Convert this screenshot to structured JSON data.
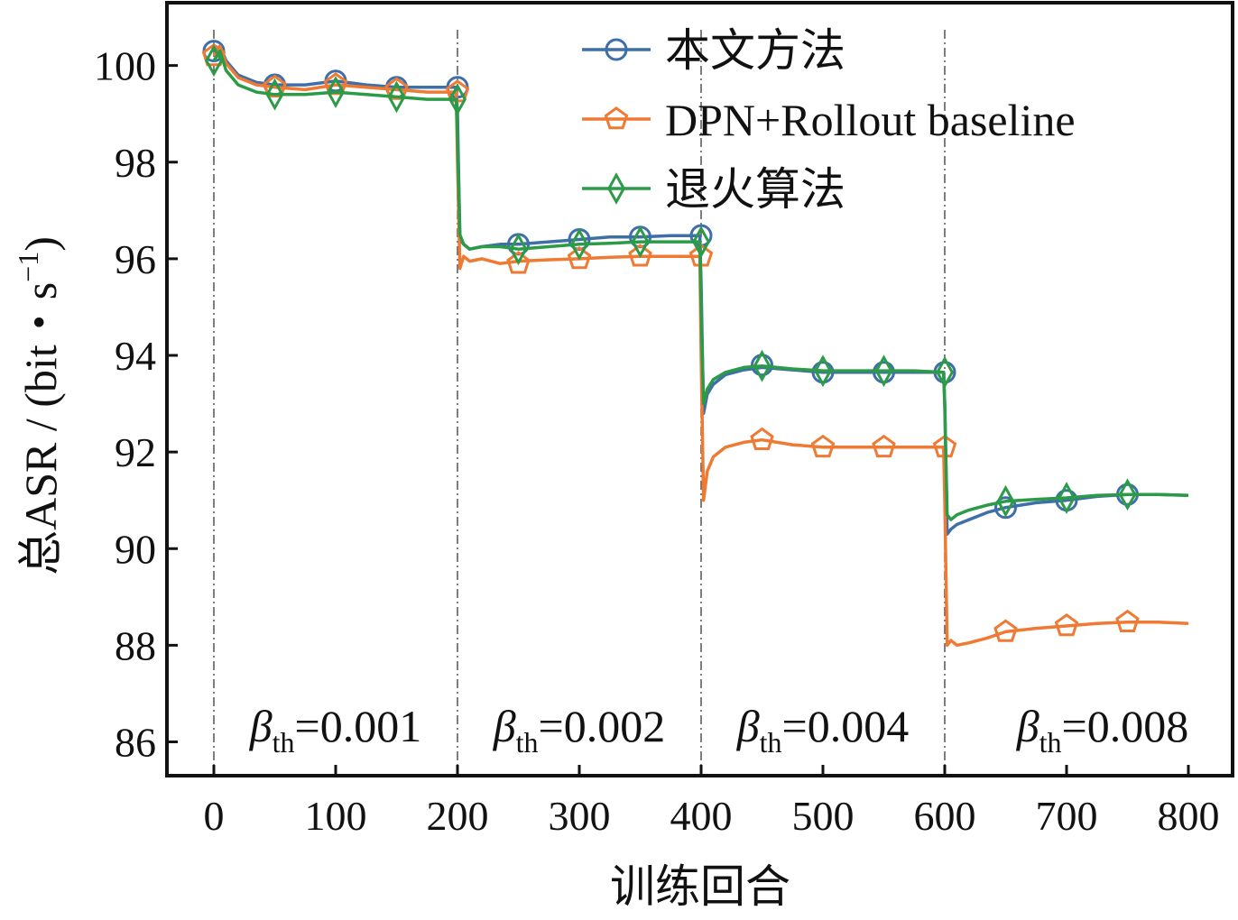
{
  "chart_data": {
    "type": "line",
    "title": "",
    "xlabel": "训练回合",
    "ylabel": "总ASR / (bit・s⁻¹)",
    "ylabel_parts": {
      "main": "总ASR / (bit",
      "dot": "・",
      "s": "s",
      "exp": "−1",
      "close": ")"
    },
    "xlim": [
      0,
      800
    ],
    "ylim": [
      85.3,
      101.3
    ],
    "xticks": [
      0,
      100,
      200,
      300,
      400,
      500,
      600,
      700,
      800
    ],
    "xtick_labels": [
      "0",
      "100",
      "200",
      "300",
      "400",
      "500",
      "600",
      "700",
      "800"
    ],
    "yticks": [
      86,
      88,
      90,
      92,
      94,
      96,
      98,
      100
    ],
    "ytick_labels": [
      "86",
      "88",
      "90",
      "92",
      "94",
      "96",
      "98",
      "100"
    ],
    "grid": false,
    "legend_position": "top-right",
    "phase_boundaries": [
      0,
      200,
      400,
      600
    ],
    "phase_labels": [
      {
        "x_start": 0,
        "x_end": 200,
        "symbol": "β",
        "sub": "th",
        "value": "=0.001"
      },
      {
        "x_start": 200,
        "x_end": 400,
        "symbol": "β",
        "sub": "th",
        "value": "=0.002"
      },
      {
        "x_start": 400,
        "x_end": 600,
        "symbol": "β",
        "sub": "th",
        "value": "=0.004"
      },
      {
        "x_start": 600,
        "x_end": 800,
        "symbol": "β",
        "sub": "th",
        "value": "=0.008"
      }
    ],
    "series": [
      {
        "name": "本文方法",
        "color": "#3f6fa8",
        "marker": "circle",
        "x": [
          0,
          5,
          10,
          20,
          35,
          50,
          75,
          100,
          125,
          150,
          175,
          199,
          200,
          202,
          205,
          210,
          220,
          235,
          250,
          275,
          300,
          325,
          350,
          375,
          399,
          400,
          402,
          405,
          410,
          420,
          435,
          450,
          475,
          500,
          525,
          550,
          575,
          599,
          600,
          602,
          605,
          610,
          620,
          635,
          650,
          675,
          700,
          725,
          750,
          775,
          800
        ],
        "y": [
          100.3,
          100.4,
          100.1,
          99.8,
          99.65,
          99.6,
          99.6,
          99.68,
          99.6,
          99.55,
          99.55,
          99.55,
          99.0,
          96.4,
          96.3,
          96.2,
          96.25,
          96.3,
          96.3,
          96.35,
          96.4,
          96.45,
          96.45,
          96.48,
          96.48,
          95.5,
          92.8,
          93.2,
          93.4,
          93.6,
          93.7,
          93.75,
          93.7,
          93.65,
          93.65,
          93.65,
          93.65,
          93.65,
          93.0,
          90.3,
          90.4,
          90.5,
          90.6,
          90.75,
          90.85,
          90.95,
          91.0,
          91.08,
          91.12,
          91.12,
          91.1
        ],
        "marker_x": [
          0,
          50,
          100,
          150,
          200,
          250,
          300,
          350,
          400,
          450,
          500,
          550,
          600,
          650,
          700,
          750
        ],
        "marker_y": [
          100.3,
          99.6,
          99.68,
          99.55,
          99.55,
          96.3,
          96.4,
          96.45,
          96.48,
          93.8,
          93.65,
          93.65,
          93.65,
          90.85,
          91.0,
          91.12
        ]
      },
      {
        "name": "DPN+Rollout baseline",
        "color": "#ee7a33",
        "marker": "pentagon",
        "x": [
          0,
          5,
          10,
          20,
          35,
          50,
          75,
          100,
          125,
          150,
          175,
          199,
          200,
          202,
          205,
          210,
          220,
          235,
          250,
          275,
          300,
          325,
          350,
          375,
          399,
          400,
          402,
          405,
          410,
          420,
          435,
          450,
          475,
          500,
          525,
          550,
          575,
          599,
          600,
          602,
          605,
          610,
          620,
          635,
          650,
          675,
          700,
          725,
          750,
          775,
          800
        ],
        "y": [
          100.2,
          100.4,
          100.05,
          99.75,
          99.6,
          99.55,
          99.5,
          99.6,
          99.55,
          99.5,
          99.45,
          99.45,
          98.0,
          95.8,
          96.05,
          95.95,
          96.0,
          95.9,
          95.95,
          95.98,
          96.0,
          96.03,
          96.05,
          96.05,
          96.05,
          94.0,
          91.0,
          91.6,
          91.9,
          92.1,
          92.2,
          92.25,
          92.15,
          92.1,
          92.1,
          92.1,
          92.1,
          92.1,
          91.0,
          88.0,
          88.1,
          88.0,
          88.05,
          88.15,
          88.28,
          88.35,
          88.4,
          88.45,
          88.48,
          88.48,
          88.45
        ],
        "marker_x": [
          0,
          50,
          100,
          150,
          200,
          250,
          300,
          350,
          400,
          450,
          500,
          550,
          600,
          650,
          700,
          750
        ],
        "marker_y": [
          100.2,
          99.55,
          99.6,
          99.5,
          99.45,
          95.9,
          96.0,
          96.05,
          96.05,
          92.25,
          92.1,
          92.1,
          92.1,
          88.28,
          88.4,
          88.48
        ]
      },
      {
        "name": "退火算法",
        "color": "#2c9b48",
        "marker": "diamond",
        "x": [
          0,
          5,
          10,
          20,
          35,
          50,
          75,
          100,
          125,
          150,
          175,
          199,
          200,
          202,
          205,
          210,
          220,
          235,
          250,
          275,
          300,
          325,
          350,
          375,
          399,
          400,
          402,
          405,
          410,
          420,
          435,
          450,
          475,
          500,
          525,
          550,
          575,
          599,
          600,
          602,
          605,
          610,
          620,
          635,
          650,
          675,
          700,
          725,
          750,
          775,
          800
        ],
        "y": [
          100.1,
          100.3,
          99.9,
          99.6,
          99.45,
          99.4,
          99.4,
          99.45,
          99.4,
          99.35,
          99.3,
          99.3,
          98.5,
          96.5,
          96.3,
          96.2,
          96.25,
          96.25,
          96.2,
          96.25,
          96.3,
          96.32,
          96.35,
          96.35,
          96.35,
          95.0,
          93.0,
          93.3,
          93.5,
          93.65,
          93.75,
          93.78,
          93.72,
          93.68,
          93.68,
          93.68,
          93.68,
          93.65,
          93.0,
          90.7,
          90.6,
          90.7,
          90.8,
          90.9,
          90.98,
          91.02,
          91.05,
          91.1,
          91.12,
          91.12,
          91.1
        ],
        "marker_x": [
          0,
          50,
          100,
          150,
          200,
          250,
          300,
          350,
          400,
          450,
          500,
          550,
          600,
          650,
          700,
          750
        ],
        "marker_y": [
          100.1,
          99.4,
          99.45,
          99.35,
          99.3,
          96.2,
          96.3,
          96.35,
          96.35,
          93.78,
          93.68,
          93.68,
          93.65,
          90.98,
          91.05,
          91.12
        ]
      }
    ]
  }
}
